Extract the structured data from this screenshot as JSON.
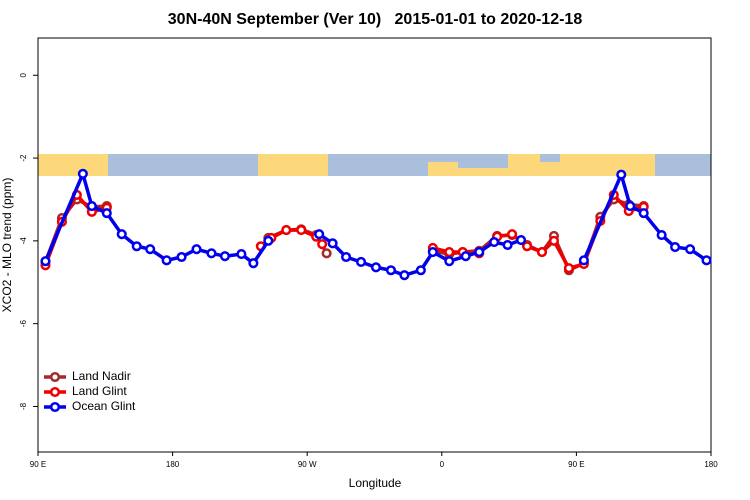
{
  "chart_data": {
    "type": "line",
    "title": "30N-40N September (Ver 10)   2015-01-01 to 2020-12-18",
    "x_label": "Longitude",
    "y_label": "XCO2 - MLO trend (ppm)",
    "xlim": [
      90,
      540
    ],
    "xticks": [
      {
        "value": 90,
        "label": "90 E"
      },
      {
        "value": 180,
        "label": "180"
      },
      {
        "value": 270,
        "label": "90 W"
      },
      {
        "value": 360,
        "label": "0"
      },
      {
        "value": 450,
        "label": "90 E"
      },
      {
        "value": 540,
        "label": "180"
      }
    ],
    "ylim": [
      -9.1,
      0.9
    ],
    "yticks": [
      0,
      -2,
      -4,
      -6,
      -8
    ],
    "grid": false,
    "legend": "bottom-left",
    "series": [
      {
        "name": "Land Nadir",
        "color": "#a52a2a",
        "x": [
          95,
          106,
          116,
          126,
          136,
          null,
          244,
          256,
          266,
          276,
          283,
          null,
          354,
          365,
          374,
          385,
          397,
          407,
          417,
          427,
          435,
          445,
          455,
          466,
          475,
          485,
          495
        ],
        "values": [
          -4.51,
          -3.45,
          -3.0,
          -3.18,
          -3.16,
          null,
          -3.93,
          -3.74,
          -3.72,
          -3.86,
          -4.3,
          null,
          -4.24,
          -4.32,
          -4.27,
          -4.24,
          -3.88,
          -3.86,
          -4.1,
          -4.27,
          -3.88,
          -4.71,
          -4.54,
          -3.42,
          -3.0,
          -3.12,
          -3.16
        ]
      },
      {
        "name": "Land Glint",
        "color": "#ee0000",
        "x": [
          95,
          106,
          116,
          126,
          136,
          null,
          239,
          246,
          256,
          266,
          276,
          280,
          null,
          354,
          365,
          374,
          385,
          397,
          407,
          417,
          427,
          435,
          445,
          455,
          466,
          475,
          485,
          495
        ],
        "values": [
          -4.59,
          -3.54,
          -2.89,
          -3.3,
          -3.2,
          null,
          -4.13,
          -3.93,
          -3.74,
          -3.74,
          -3.9,
          -4.08,
          null,
          -4.17,
          -4.27,
          -4.27,
          -4.3,
          -3.9,
          -3.84,
          -4.13,
          -4.27,
          -4.0,
          -4.66,
          -4.56,
          -3.52,
          -2.89,
          -3.28,
          -3.18
        ]
      },
      {
        "name": "Ocean Glint",
        "color": "#0000ee",
        "x": [
          95,
          120,
          126,
          136,
          146,
          156,
          165,
          176,
          186,
          196,
          206,
          215,
          226,
          234,
          244,
          null,
          278,
          287,
          296,
          306,
          316,
          326,
          335,
          346,
          354,
          365,
          376,
          385,
          395,
          404,
          413,
          null,
          455,
          480,
          486,
          495,
          507,
          516,
          526,
          537
        ],
        "values": [
          -4.49,
          -2.38,
          -3.16,
          -3.33,
          -3.84,
          -4.13,
          -4.2,
          -4.47,
          -4.39,
          -4.2,
          -4.3,
          -4.37,
          -4.32,
          -4.54,
          -4.0,
          null,
          -3.84,
          -4.06,
          -4.39,
          -4.51,
          -4.64,
          -4.71,
          -4.83,
          -4.71,
          -4.27,
          -4.49,
          -4.37,
          -4.27,
          -4.03,
          -4.1,
          -3.98,
          null,
          -4.47,
          -2.4,
          -3.16,
          -3.33,
          -3.86,
          -4.15,
          -4.2,
          -4.47
        ]
      }
    ]
  }
}
